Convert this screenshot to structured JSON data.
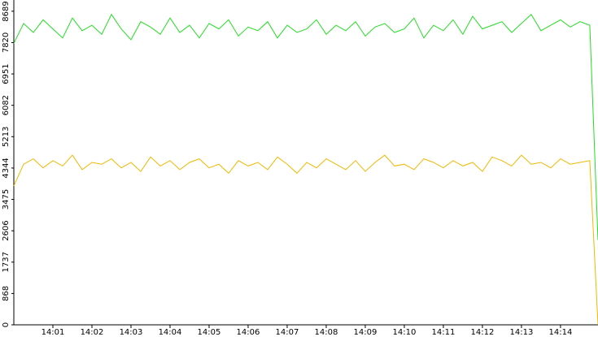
{
  "chart_data": {
    "type": "line",
    "x": [
      0,
      0.25,
      0.5,
      0.75,
      1,
      1.25,
      1.5,
      1.75,
      2,
      2.25,
      2.5,
      2.75,
      3,
      3.25,
      3.5,
      3.75,
      4,
      4.25,
      4.5,
      4.75,
      5,
      5.25,
      5.5,
      5.75,
      6,
      6.25,
      6.5,
      6.75,
      7,
      7.25,
      7.5,
      7.75,
      8,
      8.25,
      8.5,
      8.75,
      9,
      9.25,
      9.5,
      9.75,
      10,
      10.25,
      10.5,
      10.75,
      11,
      11.25,
      11.5,
      11.75,
      12,
      12.25,
      12.5,
      12.75,
      13,
      13.25,
      13.5,
      13.75,
      14,
      14.25,
      14.5,
      14.75,
      14.96
    ],
    "series": [
      {
        "color": "#22dd22",
        "values": [
          7800,
          8350,
          8100,
          8450,
          8200,
          7950,
          8500,
          8150,
          8300,
          8050,
          8600,
          8200,
          7900,
          8400,
          8250,
          8050,
          8500,
          8100,
          8300,
          7950,
          8350,
          8200,
          8450,
          8000,
          8250,
          8150,
          8400,
          7950,
          8300,
          8100,
          8200,
          8450,
          8050,
          8300,
          8150,
          8400,
          8000,
          8250,
          8350,
          8100,
          8200,
          8500,
          7950,
          8300,
          8150,
          8450,
          8050,
          8550,
          8200,
          8300,
          8400,
          8100,
          8350,
          8600,
          8150,
          8300,
          8450,
          8250,
          8400,
          8300,
          2350
        ]
      },
      {
        "color": "#f0b800",
        "values": [
          3850,
          4450,
          4600,
          4350,
          4550,
          4400,
          4700,
          4300,
          4500,
          4450,
          4600,
          4350,
          4500,
          4250,
          4650,
          4400,
          4550,
          4300,
          4500,
          4600,
          4350,
          4450,
          4200,
          4550,
          4400,
          4500,
          4300,
          4650,
          4450,
          4200,
          4500,
          4350,
          4600,
          4450,
          4300,
          4550,
          4250,
          4500,
          4700,
          4400,
          4450,
          4300,
          4600,
          4500,
          4350,
          4550,
          4400,
          4500,
          4250,
          4650,
          4550,
          4400,
          4700,
          4450,
          4500,
          4350,
          4600,
          4450,
          4500,
          4550,
          0
        ]
      }
    ],
    "xlim": [
      0,
      14.96
    ],
    "xticks": [
      {
        "value": 1,
        "label": "14:01"
      },
      {
        "value": 2,
        "label": "14:02"
      },
      {
        "value": 3,
        "label": "14:03"
      },
      {
        "value": 4,
        "label": "14:04"
      },
      {
        "value": 5,
        "label": "14:05"
      },
      {
        "value": 6,
        "label": "14:06"
      },
      {
        "value": 7,
        "label": "14:07"
      },
      {
        "value": 8,
        "label": "14:08"
      },
      {
        "value": 9,
        "label": "14:09"
      },
      {
        "value": 10,
        "label": "14:10"
      },
      {
        "value": 11,
        "label": "14:11"
      },
      {
        "value": 12,
        "label": "14:12"
      },
      {
        "value": 13,
        "label": "14:13"
      },
      {
        "value": 14,
        "label": "14:14"
      }
    ],
    "ylim": [
      0,
      9000
    ],
    "yticks": [
      0,
      868,
      1737,
      2606,
      3475,
      4344,
      5213,
      6082,
      6951,
      7820,
      8689
    ]
  }
}
